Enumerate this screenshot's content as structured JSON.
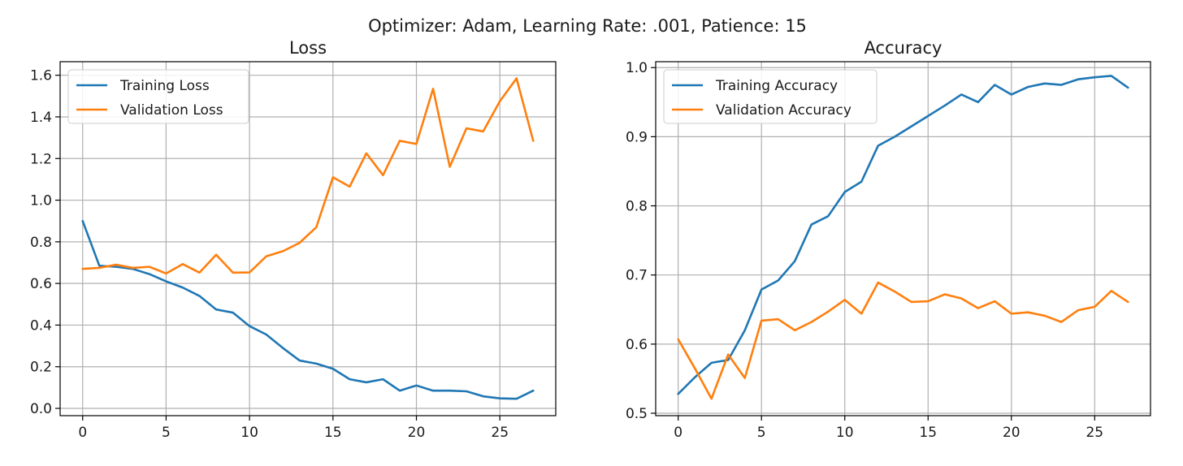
{
  "suptitle": "Optimizer: Adam, Learning Rate: .001, Patience: 15",
  "colors": {
    "training": "#1f77b4",
    "validation": "#ff7f0e"
  },
  "chart_data": [
    {
      "type": "line",
      "title": "Loss",
      "xlabel": "",
      "ylabel": "",
      "xlim": [
        -1.35,
        28.35
      ],
      "ylim": [
        -0.035,
        1.665
      ],
      "xticks": [
        0,
        5,
        10,
        15,
        20,
        25
      ],
      "yticks": [
        0.0,
        0.2,
        0.4,
        0.6,
        0.8,
        1.0,
        1.2,
        1.4,
        1.6
      ],
      "ytick_labels": [
        "0.0",
        "0.2",
        "0.4",
        "0.6",
        "0.8",
        "1.0",
        "1.2",
        "1.4",
        "1.6"
      ],
      "grid": true,
      "legend": "upper left",
      "x": [
        0,
        1,
        2,
        3,
        4,
        5,
        6,
        7,
        8,
        9,
        10,
        11,
        12,
        13,
        14,
        15,
        16,
        17,
        18,
        19,
        20,
        21,
        22,
        23,
        24,
        25,
        26,
        27
      ],
      "series": [
        {
          "name": "Training Loss",
          "color": "#1f77b4",
          "values": [
            0.9,
            0.685,
            0.68,
            0.67,
            0.645,
            0.61,
            0.58,
            0.54,
            0.475,
            0.46,
            0.395,
            0.355,
            0.29,
            0.23,
            0.215,
            0.19,
            0.14,
            0.125,
            0.14,
            0.085,
            0.11,
            0.085,
            0.085,
            0.082,
            0.058,
            0.048,
            0.046,
            0.085
          ]
        },
        {
          "name": "Validation Loss",
          "color": "#ff7f0e",
          "values": [
            0.67,
            0.675,
            0.69,
            0.675,
            0.68,
            0.648,
            0.693,
            0.652,
            0.738,
            0.652,
            0.653,
            0.73,
            0.755,
            0.795,
            0.87,
            1.11,
            1.065,
            1.225,
            1.12,
            1.285,
            1.27,
            1.535,
            1.16,
            1.345,
            1.33,
            1.475,
            1.585,
            1.285
          ]
        }
      ]
    },
    {
      "type": "line",
      "title": "Accuracy",
      "xlabel": "",
      "ylabel": "",
      "xlim": [
        -1.35,
        28.35
      ],
      "ylim": [
        0.4965,
        1.0085
      ],
      "xticks": [
        0,
        5,
        10,
        15,
        20,
        25
      ],
      "yticks": [
        0.5,
        0.6,
        0.7,
        0.8,
        0.9,
        1.0
      ],
      "ytick_labels": [
        "0.5",
        "0.6",
        "0.7",
        "0.8",
        "0.9",
        "1.0"
      ],
      "grid": true,
      "legend": "upper left",
      "x": [
        0,
        1,
        2,
        3,
        4,
        5,
        6,
        7,
        8,
        9,
        10,
        11,
        12,
        13,
        14,
        15,
        16,
        17,
        18,
        19,
        20,
        21,
        22,
        23,
        24,
        25,
        26,
        27
      ],
      "series": [
        {
          "name": "Training Accuracy",
          "color": "#1f77b4",
          "values": [
            0.528,
            0.552,
            0.573,
            0.577,
            0.62,
            0.679,
            0.692,
            0.72,
            0.773,
            0.785,
            0.82,
            0.835,
            0.887,
            0.9,
            0.915,
            0.93,
            0.945,
            0.961,
            0.95,
            0.975,
            0.961,
            0.972,
            0.977,
            0.975,
            0.983,
            0.986,
            0.988,
            0.971
          ]
        },
        {
          "name": "Validation Accuracy",
          "color": "#ff7f0e",
          "values": [
            0.607,
            0.565,
            0.521,
            0.585,
            0.551,
            0.634,
            0.636,
            0.62,
            0.632,
            0.647,
            0.664,
            0.644,
            0.689,
            0.676,
            0.661,
            0.662,
            0.672,
            0.666,
            0.652,
            0.662,
            0.644,
            0.646,
            0.641,
            0.632,
            0.649,
            0.654,
            0.677,
            0.661
          ]
        }
      ]
    }
  ]
}
